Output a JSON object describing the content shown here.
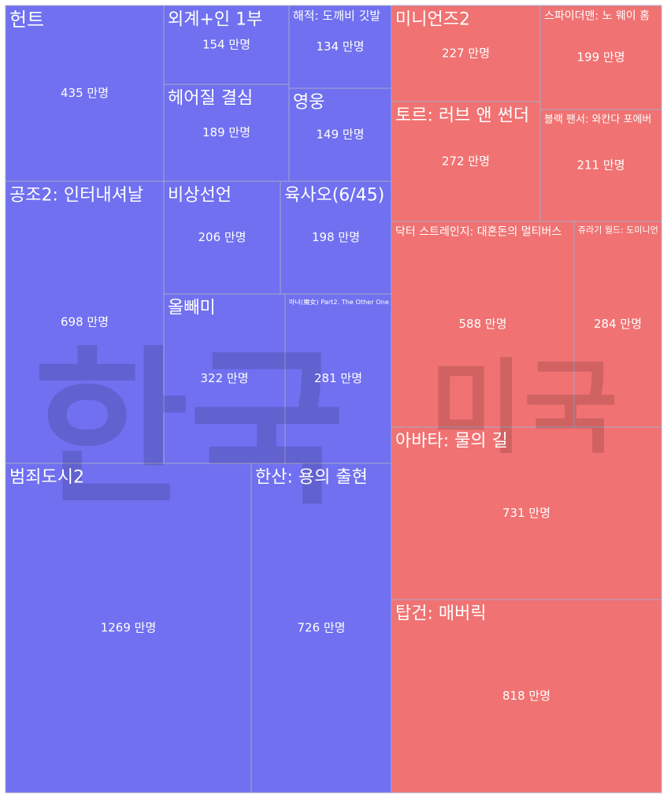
{
  "chart_data": {
    "type": "treemap",
    "unit_suffix": " 만명",
    "groups": [
      {
        "name": "한국",
        "color": "#7070f0",
        "items": [
          {
            "label": "헌트",
            "value": 435
          },
          {
            "label": "외계+인 1부",
            "value": 154
          },
          {
            "label": "해적: 도깨비 깃발",
            "value": 134
          },
          {
            "label": "헤어질 결심",
            "value": 189
          },
          {
            "label": "영웅",
            "value": 149
          },
          {
            "label": "공조2: 인터내셔날",
            "value": 698
          },
          {
            "label": "비상선언",
            "value": 206
          },
          {
            "label": "육사오(6/45)",
            "value": 198
          },
          {
            "label": "올빼미",
            "value": 322
          },
          {
            "label": "마녀(魔女) Part2. The Other One",
            "value": 281
          },
          {
            "label": "범죄도시2",
            "value": 1269
          },
          {
            "label": "한산: 용의 출현",
            "value": 726
          }
        ]
      },
      {
        "name": "미국",
        "color": "#f07272",
        "items": [
          {
            "label": "미니언즈2",
            "value": 227
          },
          {
            "label": "스파이더맨: 노 웨이 홈",
            "value": 199
          },
          {
            "label": "토르: 러브 앤 썬더",
            "value": 272
          },
          {
            "label": "블랙 팬서: 와칸다 포에버",
            "value": 211
          },
          {
            "label": "닥터 스트레인지: 대혼돈의 멀티버스",
            "value": 588
          },
          {
            "label": "쥬라기 월드: 도미니언",
            "value": 284
          },
          {
            "label": "아바타: 물의 길",
            "value": 731
          },
          {
            "label": "탑건: 매버릭",
            "value": 818
          }
        ]
      }
    ]
  }
}
